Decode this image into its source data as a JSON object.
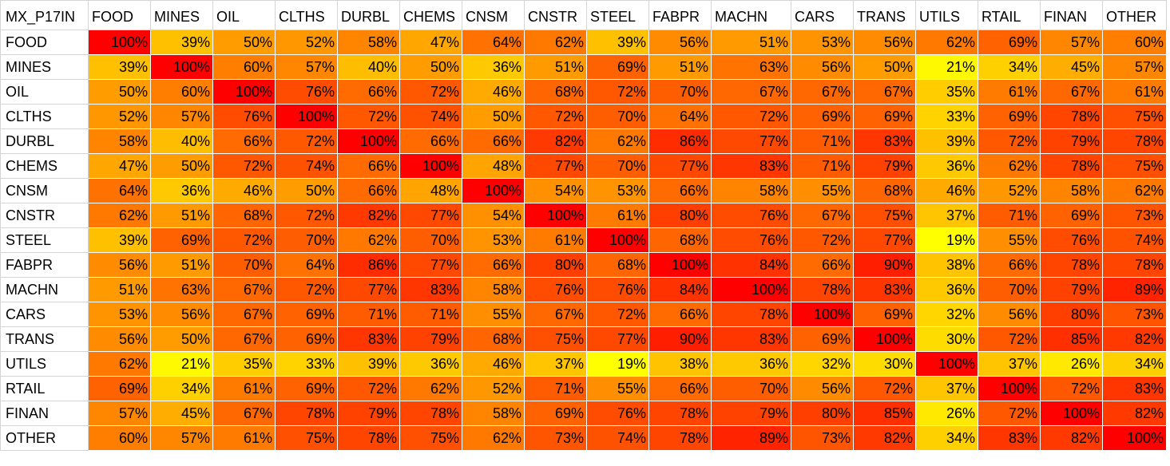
{
  "chart_data": {
    "type": "heatmap",
    "corner_label": "MX_P17IN",
    "columns": [
      "FOOD",
      "MINES",
      "OIL",
      "CLTHS",
      "DURBL",
      "CHEMS",
      "CNSM",
      "CNSTR",
      "STEEL",
      "FABPR",
      "MACHN",
      "CARS",
      "TRANS",
      "UTILS",
      "RTAIL",
      "FINAN",
      "OTHER"
    ],
    "rows": [
      "FOOD",
      "MINES",
      "OIL",
      "CLTHS",
      "DURBL",
      "CHEMS",
      "CNSM",
      "CNSTR",
      "STEEL",
      "FABPR",
      "MACHN",
      "CARS",
      "TRANS",
      "UTILS",
      "RTAIL",
      "FINAN",
      "OTHER"
    ],
    "value_format": "percent",
    "values": [
      [
        100,
        39,
        50,
        52,
        58,
        47,
        64,
        62,
        39,
        56,
        51,
        53,
        56,
        62,
        69,
        57,
        60
      ],
      [
        39,
        100,
        60,
        57,
        40,
        50,
        36,
        51,
        69,
        51,
        63,
        56,
        50,
        21,
        34,
        45,
        57
      ],
      [
        50,
        60,
        100,
        76,
        66,
        72,
        46,
        68,
        72,
        70,
        67,
        67,
        67,
        35,
        61,
        67,
        61
      ],
      [
        52,
        57,
        76,
        100,
        72,
        74,
        50,
        72,
        70,
        64,
        72,
        69,
        69,
        33,
        69,
        78,
        75
      ],
      [
        58,
        40,
        66,
        72,
        100,
        66,
        66,
        82,
        62,
        86,
        77,
        71,
        83,
        39,
        72,
        79,
        78
      ],
      [
        47,
        50,
        72,
        74,
        66,
        100,
        48,
        77,
        70,
        77,
        83,
        71,
        79,
        36,
        62,
        78,
        75
      ],
      [
        64,
        36,
        46,
        50,
        66,
        48,
        100,
        54,
        53,
        66,
        58,
        55,
        68,
        46,
        52,
        58,
        62
      ],
      [
        62,
        51,
        68,
        72,
        82,
        77,
        54,
        100,
        61,
        80,
        76,
        67,
        75,
        37,
        71,
        69,
        73
      ],
      [
        39,
        69,
        72,
        70,
        62,
        70,
        53,
        61,
        100,
        68,
        76,
        72,
        77,
        19,
        55,
        76,
        74
      ],
      [
        56,
        51,
        70,
        64,
        86,
        77,
        66,
        80,
        68,
        100,
        84,
        66,
        90,
        38,
        66,
        78,
        78
      ],
      [
        51,
        63,
        67,
        72,
        77,
        83,
        58,
        76,
        76,
        84,
        100,
        78,
        83,
        36,
        70,
        79,
        89
      ],
      [
        53,
        56,
        67,
        69,
        71,
        71,
        55,
        67,
        72,
        66,
        78,
        100,
        69,
        32,
        56,
        80,
        73
      ],
      [
        56,
        50,
        67,
        69,
        83,
        79,
        68,
        75,
        77,
        90,
        83,
        69,
        100,
        30,
        72,
        85,
        82
      ],
      [
        62,
        21,
        35,
        33,
        39,
        36,
        46,
        37,
        19,
        38,
        36,
        32,
        30,
        100,
        37,
        26,
        34
      ],
      [
        69,
        34,
        61,
        69,
        72,
        62,
        52,
        71,
        55,
        66,
        70,
        56,
        72,
        37,
        100,
        72,
        83
      ],
      [
        57,
        45,
        67,
        78,
        79,
        78,
        58,
        69,
        76,
        78,
        79,
        80,
        85,
        26,
        72,
        100,
        82
      ],
      [
        60,
        57,
        61,
        75,
        78,
        75,
        62,
        73,
        74,
        78,
        89,
        73,
        82,
        34,
        83,
        82,
        100
      ]
    ],
    "color_scale": {
      "low": "#FFFF00",
      "high": "#FF0000"
    }
  }
}
